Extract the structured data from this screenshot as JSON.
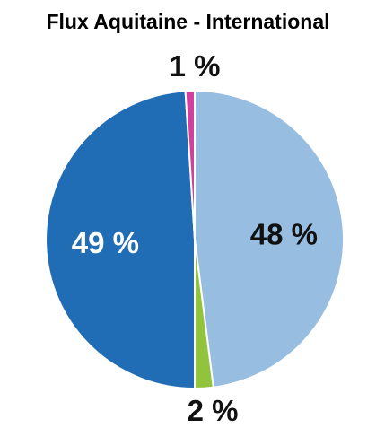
{
  "chart_data": {
    "type": "pie",
    "title": "Flux Aquitaine - International",
    "start_angle_deg": 0,
    "direction": "clockwise",
    "slices": [
      {
        "value": 48,
        "label": "48 %",
        "color": "#97bde0",
        "label_color": "#111111",
        "label_position": "inside"
      },
      {
        "value": 2,
        "label": "2 %",
        "color": "#92c33d",
        "label_color": "#111111",
        "label_position": "outside-bottom"
      },
      {
        "value": 49,
        "label": "49 %",
        "color": "#216db5",
        "label_color": "#ffffff",
        "label_position": "inside"
      },
      {
        "value": 1,
        "label": "1 %",
        "color": "#d0409d",
        "label_color": "#111111",
        "label_position": "outside-top"
      }
    ]
  }
}
